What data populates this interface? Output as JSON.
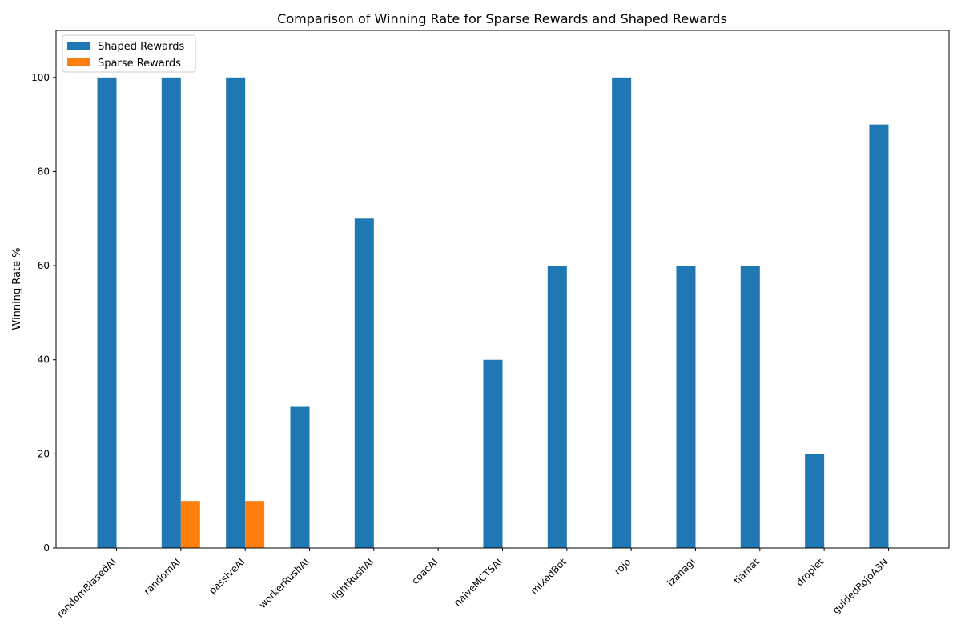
{
  "chart_data": {
    "type": "bar",
    "title": "Comparison of Winning Rate for Sparse Rewards and Shaped Rewards",
    "xlabel": "",
    "ylabel": "Winning Rate %",
    "ylim": [
      0,
      110
    ],
    "yticks": [
      0,
      20,
      40,
      60,
      80,
      100
    ],
    "grid": false,
    "legend_position": "top-left",
    "categories": [
      "randomBiasedAI",
      "randomAI",
      "passiveAI",
      "workerRushAI",
      "lightRushAI",
      "coacAI",
      "naiveMCTSAI",
      "mixedBot",
      "rojo",
      "izanagi",
      "tiamat",
      "droplet",
      "guidedRojoA3N"
    ],
    "series": [
      {
        "name": "Shaped Rewards",
        "color": "#1f77b4",
        "values": [
          100,
          100,
          100,
          30,
          70,
          0,
          40,
          60,
          100,
          60,
          60,
          20,
          90
        ]
      },
      {
        "name": "Sparse Rewards",
        "color": "#ff7f0e",
        "values": [
          0,
          10,
          10,
          0,
          0,
          0,
          0,
          0,
          0,
          0,
          0,
          0,
          0
        ]
      }
    ]
  }
}
